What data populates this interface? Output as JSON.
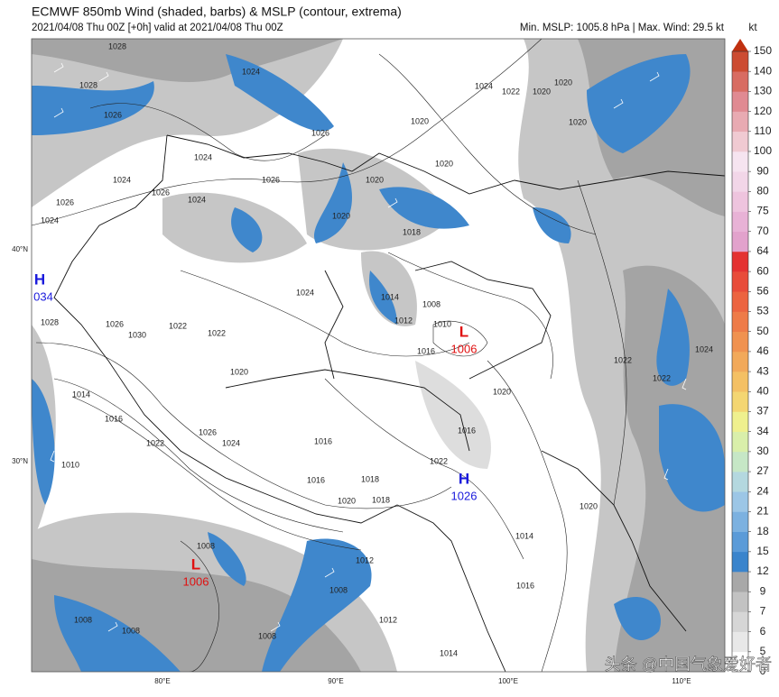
{
  "header": {
    "title": "ECMWF 850mb Wind (shaded, barbs) & MSLP (contour, extrema)",
    "subtitle": "2021/04/08 Thu 00Z [+0h] valid at 2021/04/08 Thu 00Z",
    "stats": "Min. MSLP: 1005.8 hPa | Max. Wind: 29.5 kt"
  },
  "colorbar": {
    "unit": "kt",
    "ticks": [
      0,
      5,
      6,
      7,
      9,
      12,
      15,
      18,
      21,
      24,
      27,
      30,
      34,
      37,
      40,
      43,
      46,
      50,
      53,
      56,
      60,
      64,
      70,
      75,
      80,
      90,
      100,
      110,
      120,
      130,
      140,
      150
    ],
    "colors": [
      "#ffffff",
      "#e8e8e8",
      "#d6d6d6",
      "#c2c2c2",
      "#a8a8a8",
      "#3a84cc",
      "#5b9bd8",
      "#7cb1e0",
      "#9cc6e6",
      "#b4d8df",
      "#c6e7c6",
      "#d9efaa",
      "#eff08e",
      "#f4d672",
      "#f4c064",
      "#f2a95a",
      "#f09250",
      "#ee7b48",
      "#ec6440",
      "#e84c3a",
      "#e43232",
      "#e2a2cc",
      "#e8b2d6",
      "#eec4de",
      "#f2d6e8",
      "#f6e4f0",
      "#f0cad2",
      "#e8aab2",
      "#e08a92",
      "#d86c62",
      "#cc4c32"
    ],
    "extend_color": "#c03010"
  },
  "map": {
    "lon_labels": [
      "80°E",
      "90°E",
      "100°E",
      "110°E"
    ],
    "lat_labels": [
      "40°N",
      "30°N"
    ],
    "centers": [
      {
        "letter": "H",
        "label": "034"
      },
      {
        "letter": "L",
        "label": "1006"
      },
      {
        "letter": "H",
        "label": "1026"
      },
      {
        "letter": "L",
        "label": "1006"
      }
    ],
    "contour_labels": [
      "1028",
      "1028",
      "1024",
      "1026",
      "1026",
      "1024",
      "1024",
      "1026",
      "1026",
      "1024",
      "1026",
      "1024",
      "1020",
      "1020",
      "1018",
      "1020",
      "1020",
      "1024",
      "1022",
      "1020",
      "1020",
      "1020",
      "1024",
      "1014",
      "1012",
      "1008",
      "1010",
      "1016",
      "1028",
      "1026",
      "1022",
      "1022",
      "1030",
      "1020",
      "1014",
      "1016",
      "1022",
      "1026",
      "1024",
      "1016",
      "1016",
      "1018",
      "1020",
      "1018",
      "1022",
      "1016",
      "1020",
      "1022",
      "1024",
      "1022",
      "1010",
      "1008",
      "1012",
      "1008",
      "1014",
      "1016",
      "1020",
      "1008",
      "1008",
      "1008",
      "1012",
      "1014"
    ]
  },
  "watermark": "头条 @中国气象爱好者"
}
